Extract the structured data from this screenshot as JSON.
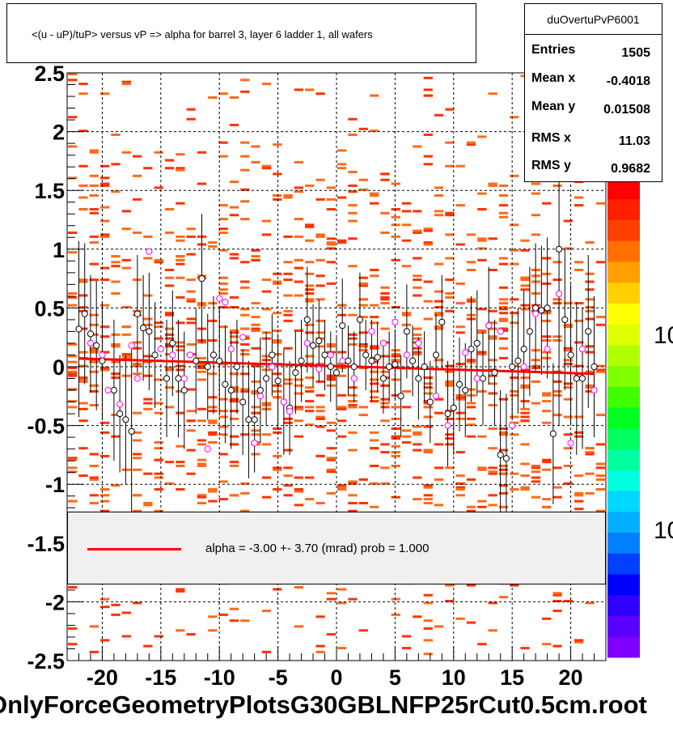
{
  "title": "<(u - uP)/tuP> versus   vP => alpha for barrel 3, layer 6 ladder 1, all wafers",
  "stats": {
    "name": "duOvertuPvP6001",
    "rows": [
      {
        "label": "Entries",
        "value": "1505"
      },
      {
        "label": "Mean x",
        "value": "-0.4018"
      },
      {
        "label": "Mean y",
        "value": "0.01508"
      },
      {
        "label": "RMS x",
        "value": "11.03"
      },
      {
        "label": "RMS y",
        "value": "0.9682"
      }
    ]
  },
  "legend": {
    "text": "alpha =   -3.00 +-  3.70 (mrad) prob = 1.000",
    "line_color": "#ff0000"
  },
  "file_label": "OnlyForceGeometryPlotsG30GBLNFP25rCut0.5cm.root",
  "palette_labels": [
    "10",
    "10"
  ],
  "chart_data": {
    "type": "scatter",
    "title": "<(u - uP)/tuP> versus   vP => alpha for barrel 3, layer 6 ladder 1, all wafers",
    "xlim": [
      -23,
      23
    ],
    "ylim": [
      -2.5,
      2.5
    ],
    "x_ticks": [
      -20,
      -15,
      -10,
      -5,
      0,
      5,
      10,
      15,
      20
    ],
    "y_ticks": [
      -2.5,
      -2,
      -1.5,
      -1,
      -0.5,
      0,
      0.5,
      1,
      1.5,
      2,
      2.5
    ],
    "x_tick_labels": [
      "-20",
      "-15",
      "-10",
      "-5",
      "0",
      "5",
      "10",
      "15",
      "20"
    ],
    "y_tick_labels": [
      "-2.5",
      "-2",
      "-1.5",
      "-1",
      "-0.5",
      "0",
      "0.5",
      "1",
      "1.5",
      "2",
      "2.5"
    ],
    "grid": true,
    "fit_line": {
      "x": [
        -22,
        22
      ],
      "y": [
        0.07,
        -0.06
      ],
      "color": "#ff0000"
    },
    "series": [
      {
        "marker": "open-circle",
        "color": "#000000",
        "x": [
          -22.0,
          -21.5,
          -21.0,
          -20.5,
          -20.0,
          -19.0,
          -18.5,
          -18.0,
          -17.5,
          -17.0,
          -16.5,
          -16.0,
          -15.5,
          -14.5,
          -14.0,
          -13.5,
          -13.0,
          -12.0,
          -11.5,
          -11.0,
          -10.5,
          -10.0,
          -9.5,
          -9.0,
          -8.5,
          -8.0,
          -7.5,
          -7.0,
          -6.5,
          -6.0,
          -5.5,
          -5.0,
          -4.5,
          -4.0,
          -3.5,
          -3.0,
          -2.5,
          -2.0,
          -1.5,
          -1.0,
          -0.5,
          0.0,
          0.5,
          1.0,
          1.5,
          2.0,
          2.5,
          3.0,
          3.5,
          4.0,
          4.5,
          5.0,
          5.5,
          6.0,
          6.5,
          7.0,
          7.5,
          8.0,
          8.5,
          9.0,
          9.5,
          10.0,
          10.5,
          11.0,
          11.5,
          12.0,
          12.5,
          13.0,
          13.5,
          14.0,
          14.5,
          15.0,
          15.5,
          16.0,
          16.5,
          17.0,
          17.5,
          18.0,
          18.5,
          19.0,
          19.5,
          20.0,
          20.5,
          21.0,
          21.5,
          22.0
        ],
        "y": [
          0.32,
          0.45,
          0.28,
          0.18,
          0.05,
          -0.2,
          -0.4,
          -0.45,
          -0.55,
          0.45,
          0.33,
          0.3,
          0.1,
          -0.1,
          0.2,
          -0.1,
          -0.2,
          0.05,
          0.75,
          0.0,
          0.1,
          0.05,
          -0.15,
          -0.2,
          0.0,
          -0.3,
          -0.45,
          -0.45,
          -0.2,
          -0.1,
          0.1,
          -0.12,
          -0.3,
          -0.35,
          -0.05,
          0.05,
          0.4,
          0.18,
          0.22,
          0.1,
          0.0,
          -0.05,
          0.35,
          0.05,
          0.0,
          0.4,
          0.1,
          0.05,
          0.08,
          -0.1,
          0.0,
          0.02,
          -0.25,
          0.3,
          0.05,
          -0.1,
          0.0,
          -0.3,
          0.1,
          0.38,
          -0.4,
          -0.35,
          -0.15,
          -0.2,
          0.15,
          0.2,
          -0.1,
          0.35,
          -0.05,
          -0.75,
          -0.78,
          0.0,
          0.05,
          0.15,
          0.3,
          0.5,
          0.48,
          0.5,
          -0.57,
          1.0,
          0.4,
          0.1,
          -0.1,
          -0.1,
          0.3,
          0.0
        ],
        "err": [
          0.75,
          0.6,
          0.5,
          0.55,
          0.5,
          0.6,
          0.5,
          0.55,
          0.7,
          0.5,
          0.45,
          0.5,
          0.45,
          0.5,
          0.45,
          0.5,
          0.5,
          0.45,
          0.55,
          0.45,
          0.5,
          0.45,
          0.5,
          0.5,
          0.4,
          0.45,
          0.5,
          0.45,
          0.45,
          0.4,
          0.35,
          0.4,
          0.45,
          0.4,
          0.35,
          0.35,
          0.45,
          0.35,
          0.35,
          0.3,
          0.3,
          0.3,
          0.4,
          0.3,
          0.3,
          0.4,
          0.3,
          0.35,
          0.3,
          0.3,
          0.3,
          0.3,
          0.35,
          0.4,
          0.3,
          0.35,
          0.3,
          0.35,
          0.35,
          0.4,
          0.45,
          0.4,
          0.4,
          0.4,
          0.45,
          0.45,
          0.4,
          0.5,
          0.45,
          0.55,
          0.55,
          0.45,
          0.45,
          0.5,
          0.55,
          0.55,
          0.55,
          0.6,
          0.6,
          1.5,
          0.6,
          0.6,
          0.65,
          0.6,
          0.65,
          0.6
        ]
      },
      {
        "marker": "open-circle",
        "color": "#ff00ff",
        "x": [
          -21.0,
          -20.0,
          -19.5,
          -18.5,
          -17.5,
          -17.0,
          -16.0,
          -15.0,
          -14.0,
          -13.0,
          -12.5,
          -11.0,
          -10.0,
          -9.5,
          -9.0,
          -8.0,
          -7.0,
          -6.5,
          -5.5,
          -4.5,
          -4.0,
          -2.5,
          -1.5,
          -0.5,
          0.5,
          1.5,
          3.0,
          4.0,
          5.0,
          6.0,
          7.0,
          8.5,
          9.5,
          11.0,
          12.0,
          13.0,
          14.0,
          15.0,
          16.0,
          17.0,
          18.0,
          19.0,
          20.0,
          21.0,
          22.0
        ],
        "y": [
          0.2,
          0.1,
          -0.2,
          -0.32,
          0.18,
          -0.1,
          0.98,
          0.15,
          0.1,
          -0.1,
          0.1,
          -0.7,
          0.58,
          0.55,
          0.15,
          0.25,
          -0.65,
          -0.25,
          0.0,
          -0.3,
          -0.38,
          0.2,
          -0.02,
          0.1,
          0.05,
          -0.1,
          0.3,
          0.2,
          0.38,
          0.1,
          0.2,
          -0.25,
          -0.5,
          0.12,
          -0.1,
          0.35,
          0.3,
          -0.5,
          0.0,
          0.45,
          0.15,
          0.62,
          -0.65,
          0.15,
          -0.2
        ]
      }
    ]
  }
}
